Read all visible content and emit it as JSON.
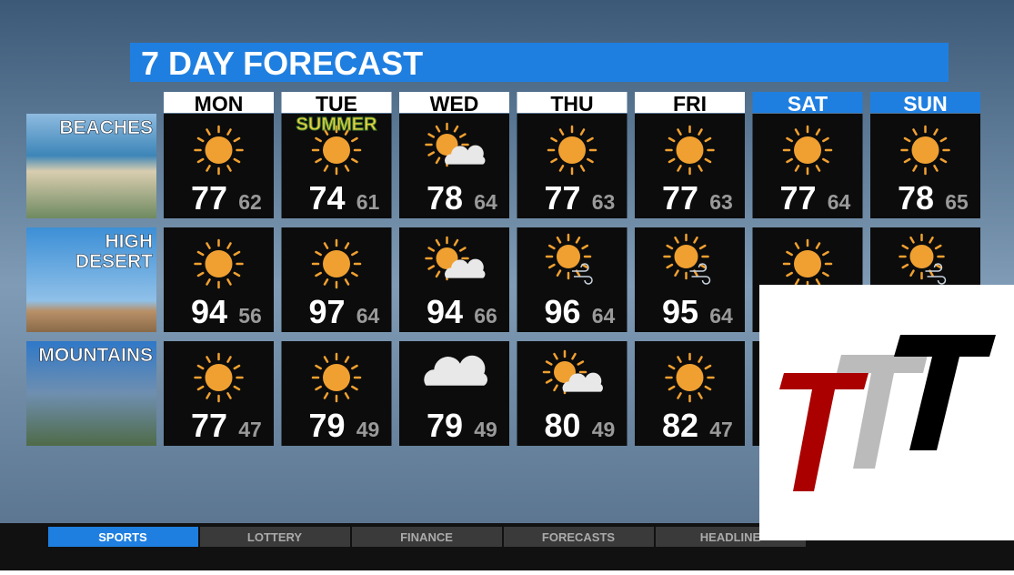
{
  "header": {
    "title": "7 DAY FORECAST"
  },
  "days": [
    {
      "label": "MON",
      "color": "#ffffff"
    },
    {
      "label": "TUE",
      "color": "#ffffff"
    },
    {
      "label": "WED",
      "color": "#ffffff"
    },
    {
      "label": "THU",
      "color": "#ffffff"
    },
    {
      "label": "FRI",
      "color": "#ffffff"
    },
    {
      "label": "SAT",
      "color": "#1f7fe0"
    },
    {
      "label": "SUN",
      "color": "#1f7fe0"
    }
  ],
  "rows": [
    {
      "label": [
        "BEACHES"
      ],
      "cells": [
        {
          "icon": "sun",
          "high": 77,
          "low": 62
        },
        {
          "icon": "sun",
          "high": 74,
          "low": 61,
          "badge": "SUMMER"
        },
        {
          "icon": "sun-cloud",
          "high": 78,
          "low": 64
        },
        {
          "icon": "sun",
          "high": 77,
          "low": 63
        },
        {
          "icon": "sun",
          "high": 77,
          "low": 63
        },
        {
          "icon": "sun",
          "high": 77,
          "low": 64
        },
        {
          "icon": "sun",
          "high": 78,
          "low": 65
        }
      ]
    },
    {
      "label": [
        "HIGH",
        "DESERT"
      ],
      "cells": [
        {
          "icon": "sun",
          "high": 94,
          "low": 56
        },
        {
          "icon": "sun",
          "high": 97,
          "low": 64
        },
        {
          "icon": "sun-cloud",
          "high": 94,
          "low": 66
        },
        {
          "icon": "sun-wind",
          "high": 96,
          "low": 64
        },
        {
          "icon": "sun-wind",
          "high": 95,
          "low": 64
        },
        {
          "icon": "sun"
        },
        {
          "icon": "sun-wind"
        }
      ]
    },
    {
      "label": [
        "MOUNTAINS"
      ],
      "cells": [
        {
          "icon": "sun",
          "high": 77,
          "low": 47
        },
        {
          "icon": "sun",
          "high": 79,
          "low": 49
        },
        {
          "icon": "cloud",
          "high": 79,
          "low": 49
        },
        {
          "icon": "sun-cloud",
          "high": 80,
          "low": 49
        },
        {
          "icon": "sun",
          "high": 82,
          "low": 47
        },
        {},
        {}
      ]
    }
  ],
  "ticker": [
    "SPORTS",
    "LOTTERY",
    "FINANCE",
    "FORECASTS",
    "HEADLINE"
  ]
}
